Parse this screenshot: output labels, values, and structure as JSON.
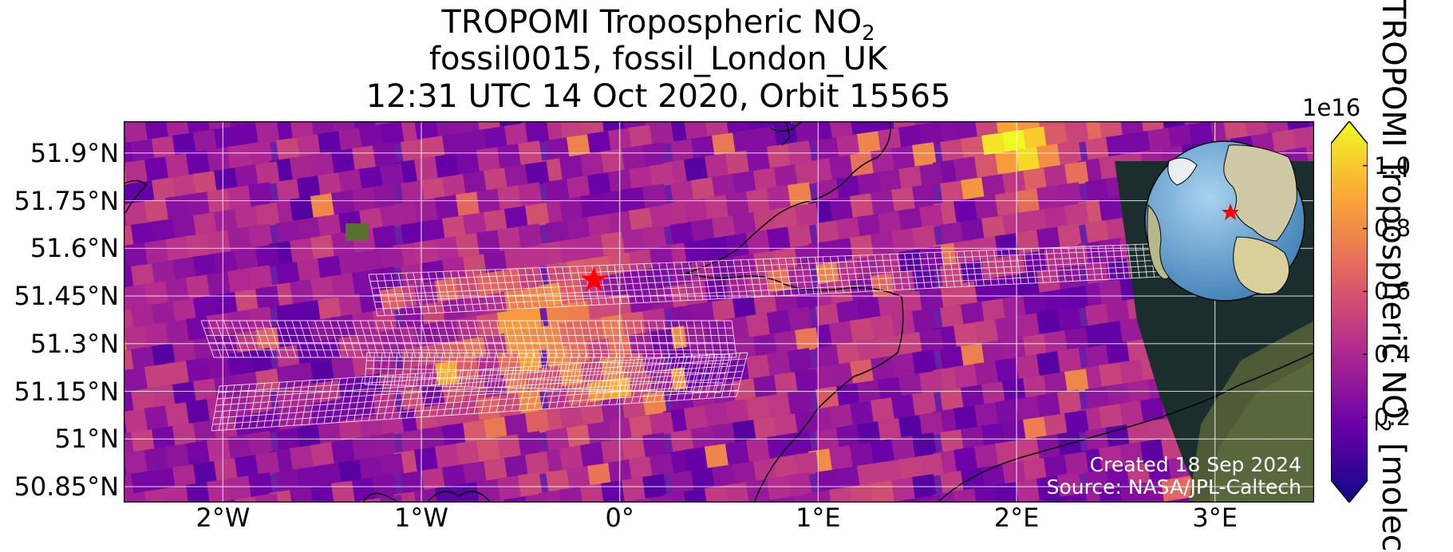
{
  "title": {
    "line1_prefix": "TROPOMI Tropospheric NO",
    "line1_sub": "2",
    "line2": "fossil0015, fossil_London_UK",
    "line3": "12:31 UTC 14 Oct 2020, Orbit 15565"
  },
  "axes": {
    "lat_ticks": [
      {
        "label": "51.9°N",
        "value": 51.9
      },
      {
        "label": "51.75°N",
        "value": 51.75
      },
      {
        "label": "51.6°N",
        "value": 51.6
      },
      {
        "label": "51.45°N",
        "value": 51.45
      },
      {
        "label": "51.3°N",
        "value": 51.3
      },
      {
        "label": "51.15°N",
        "value": 51.15
      },
      {
        "label": "51°N",
        "value": 51.0
      },
      {
        "label": "50.85°N",
        "value": 50.85
      }
    ],
    "lon_ticks": [
      {
        "label": "2°W",
        "value": -2
      },
      {
        "label": "1°W",
        "value": -1
      },
      {
        "label": "0°",
        "value": 0
      },
      {
        "label": "1°E",
        "value": 1
      },
      {
        "label": "2°E",
        "value": 2
      },
      {
        "label": "3°E",
        "value": 3
      }
    ],
    "lon_range": [
      -2.5,
      3.5
    ],
    "lat_range": [
      50.8,
      52.0
    ],
    "grid": true
  },
  "target": {
    "lon": -0.13,
    "lat": 51.5,
    "marker_color": "#ff0000"
  },
  "colorbar": {
    "exponent_label": "1e16",
    "ticks": [
      {
        "label": "1.0",
        "value": 1.0
      },
      {
        "label": "0.8",
        "value": 0.8
      },
      {
        "label": "0.6",
        "value": 0.6
      },
      {
        "label": "0.4",
        "value": 0.4
      },
      {
        "label": "0.2",
        "value": 0.2
      }
    ],
    "range": [
      0,
      1.07
    ],
    "label_prefix": "TROPOMI Tropospheric NO",
    "label_sub": "2",
    "label_suffix": " [molec",
    "colormap": [
      "#0d0887",
      "#6a00a8",
      "#b12a90",
      "#e16462",
      "#fca636",
      "#f0f921"
    ]
  },
  "credits": {
    "created": "Created 18 Sep 2024",
    "source": "Source: NASA/JPL-Caltech"
  }
}
